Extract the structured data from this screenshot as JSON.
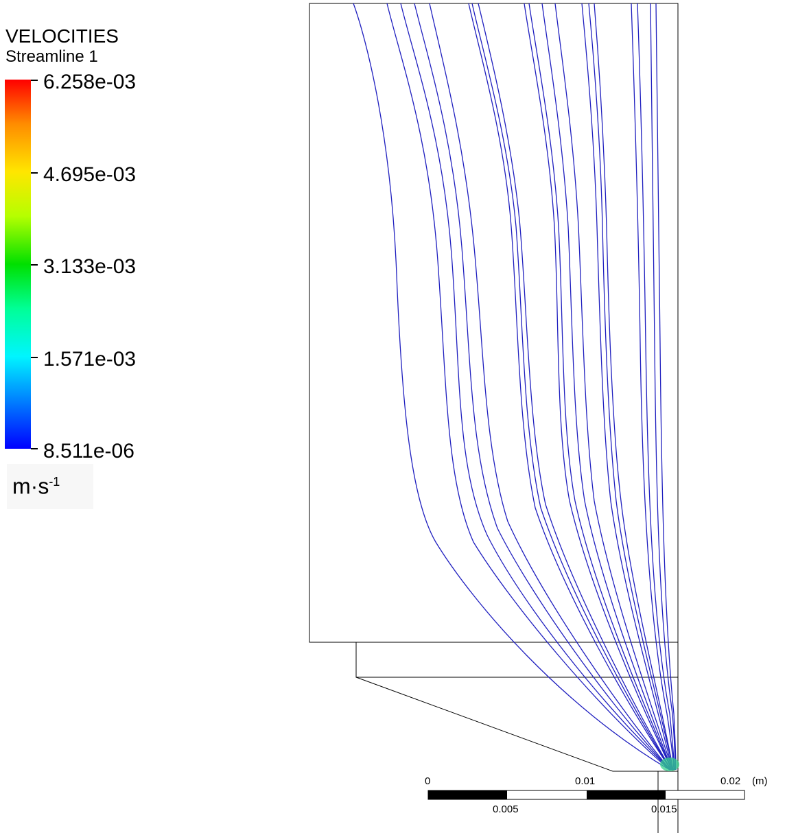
{
  "legend": {
    "title": "VELOCITIES",
    "subtitle": "Streamline 1",
    "ticks": [
      "6.258e-03",
      "4.695e-03",
      "3.133e-03",
      "1.571e-03",
      "8.511e-06"
    ],
    "unit_base": "m·s",
    "unit_exp": "-1",
    "colors": [
      "#ff0000",
      "#ffe600",
      "#00e000",
      "#00f5ff",
      "#0000ff"
    ]
  },
  "scale_bar": {
    "top_labels": [
      "0",
      "0.01",
      "0.02"
    ],
    "bottom_labels": [
      "0.005",
      "0.015"
    ],
    "unit": "(m)"
  },
  "streamline_color": "#1f1fbf",
  "source_color": "#35d28c"
}
